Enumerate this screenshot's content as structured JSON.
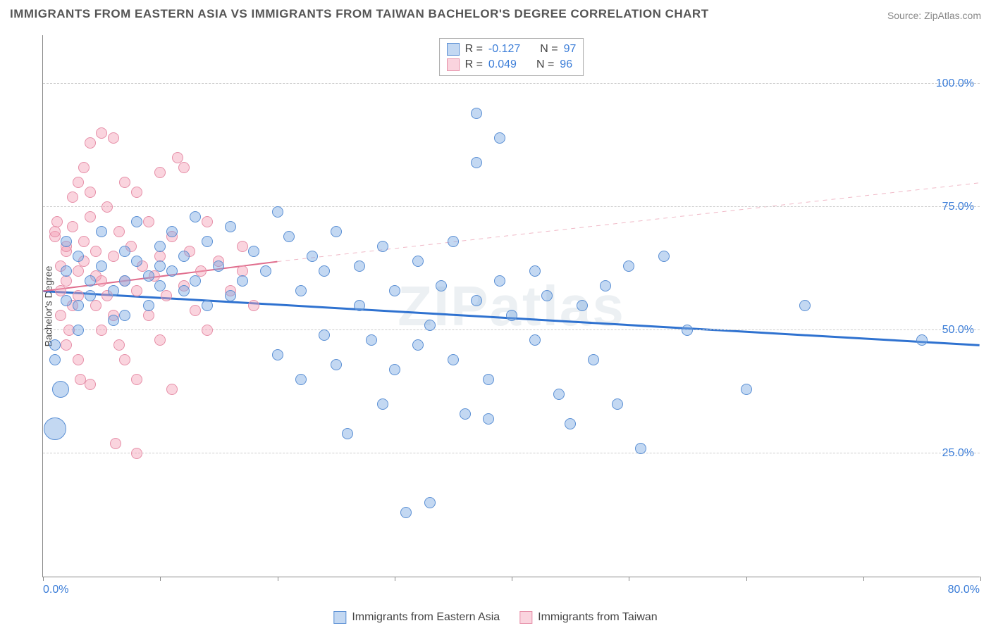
{
  "title": "IMMIGRANTS FROM EASTERN ASIA VS IMMIGRANTS FROM TAIWAN BACHELOR'S DEGREE CORRELATION CHART",
  "source_prefix": "Source: ",
  "source_name": "ZipAtlas.com",
  "watermark": "ZIPatlas",
  "chart": {
    "type": "scatter",
    "background_color": "#ffffff",
    "grid_color": "#cccccc",
    "axis_color": "#888888",
    "tick_label_color": "#3b7dd8",
    "text_color": "#444444",
    "xlim": [
      0,
      80
    ],
    "ylim": [
      0,
      110
    ],
    "xticks": [
      0,
      10,
      20,
      30,
      40,
      50,
      60,
      70,
      80
    ],
    "xtick_labels_shown": {
      "0": "0.0%",
      "80": "80.0%"
    },
    "yticks": [
      25,
      50,
      75,
      100
    ],
    "ytick_labels": {
      "25": "25.0%",
      "50": "50.0%",
      "75": "75.0%",
      "100": "100.0%"
    },
    "ylabel": "Bachelor's Degree",
    "marker_radius": 8,
    "marker_large_radius": 16,
    "series": {
      "blue": {
        "label": "Immigrants from Eastern Asia",
        "fill": "rgba(122,168,226,0.45)",
        "stroke": "#5a8fd4",
        "R": "-0.127",
        "N": "97",
        "trend": {
          "x1": 0,
          "y1": 58,
          "x2": 80,
          "y2": 47,
          "color": "#2f72d0",
          "width": 3,
          "dash_after_x": 80
        },
        "points": [
          [
            1,
            47
          ],
          [
            1,
            44
          ],
          [
            1,
            30,
            16
          ],
          [
            1.5,
            38,
            12
          ],
          [
            2,
            56
          ],
          [
            2,
            62
          ],
          [
            2,
            68
          ],
          [
            3,
            55
          ],
          [
            3,
            50
          ],
          [
            3,
            65
          ],
          [
            4,
            60
          ],
          [
            4,
            57
          ],
          [
            5,
            63
          ],
          [
            5,
            70
          ],
          [
            6,
            52
          ],
          [
            6,
            58
          ],
          [
            7,
            66
          ],
          [
            7,
            60
          ],
          [
            7,
            53
          ],
          [
            8,
            72
          ],
          [
            8,
            64
          ],
          [
            9,
            61
          ],
          [
            9,
            55
          ],
          [
            10,
            67
          ],
          [
            10,
            59
          ],
          [
            10,
            63
          ],
          [
            11,
            70
          ],
          [
            11,
            62
          ],
          [
            12,
            58
          ],
          [
            12,
            65
          ],
          [
            13,
            73
          ],
          [
            13,
            60
          ],
          [
            14,
            55
          ],
          [
            14,
            68
          ],
          [
            15,
            63
          ],
          [
            16,
            71
          ],
          [
            16,
            57
          ],
          [
            17,
            60
          ],
          [
            18,
            66
          ],
          [
            19,
            62
          ],
          [
            20,
            74
          ],
          [
            20,
            45
          ],
          [
            21,
            69
          ],
          [
            22,
            58
          ],
          [
            22,
            40
          ],
          [
            23,
            65
          ],
          [
            24,
            49
          ],
          [
            24,
            62
          ],
          [
            25,
            70
          ],
          [
            25,
            43
          ],
          [
            26,
            29
          ],
          [
            27,
            55
          ],
          [
            27,
            63
          ],
          [
            28,
            48
          ],
          [
            29,
            35
          ],
          [
            29,
            67
          ],
          [
            30,
            42
          ],
          [
            30,
            58
          ],
          [
            31,
            13
          ],
          [
            32,
            47
          ],
          [
            32,
            64
          ],
          [
            33,
            15
          ],
          [
            33,
            51
          ],
          [
            34,
            59
          ],
          [
            35,
            44
          ],
          [
            35,
            68
          ],
          [
            36,
            33
          ],
          [
            37,
            94
          ],
          [
            37,
            84
          ],
          [
            37,
            56
          ],
          [
            38,
            40
          ],
          [
            38,
            32
          ],
          [
            39,
            60
          ],
          [
            39,
            89
          ],
          [
            40,
            53
          ],
          [
            42,
            48
          ],
          [
            42,
            62
          ],
          [
            43,
            57
          ],
          [
            44,
            37
          ],
          [
            45,
            31
          ],
          [
            46,
            55
          ],
          [
            47,
            44
          ],
          [
            48,
            59
          ],
          [
            49,
            35
          ],
          [
            50,
            63
          ],
          [
            51,
            26
          ],
          [
            53,
            65
          ],
          [
            55,
            50
          ],
          [
            60,
            38
          ],
          [
            65,
            55
          ],
          [
            75,
            48
          ]
        ]
      },
      "pink": {
        "label": "Immigrants from Taiwan",
        "fill": "rgba(244,160,182,0.45)",
        "stroke": "#e68fa8",
        "R": "0.049",
        "N": "96",
        "trend": {
          "x1": 0,
          "y1": 58,
          "x2": 20,
          "y2": 64,
          "extend_to_x": 80,
          "extend_to_y": 80,
          "color_solid": "#e06d8d",
          "color_dash": "#f0b9c7",
          "width": 2
        },
        "points": [
          [
            1,
            69
          ],
          [
            1,
            70
          ],
          [
            1.2,
            72
          ],
          [
            1.5,
            63
          ],
          [
            1.5,
            58
          ],
          [
            1.5,
            53
          ],
          [
            2,
            66
          ],
          [
            2,
            60
          ],
          [
            2,
            67
          ],
          [
            2,
            47
          ],
          [
            2.2,
            50
          ],
          [
            2.5,
            77
          ],
          [
            2.5,
            71
          ],
          [
            2.5,
            55
          ],
          [
            3,
            57
          ],
          [
            3,
            62
          ],
          [
            3,
            80
          ],
          [
            3,
            44
          ],
          [
            3.2,
            40
          ],
          [
            3.5,
            68
          ],
          [
            3.5,
            64
          ],
          [
            3.5,
            83
          ],
          [
            4,
            78
          ],
          [
            4,
            88
          ],
          [
            4,
            73
          ],
          [
            4,
            39
          ],
          [
            4.5,
            61
          ],
          [
            4.5,
            66
          ],
          [
            4.5,
            55
          ],
          [
            5,
            90
          ],
          [
            5,
            60
          ],
          [
            5,
            50
          ],
          [
            5.5,
            57
          ],
          [
            5.5,
            75
          ],
          [
            6,
            89
          ],
          [
            6,
            65
          ],
          [
            6,
            53
          ],
          [
            6.2,
            27
          ],
          [
            6.5,
            70
          ],
          [
            6.5,
            47
          ],
          [
            7,
            80
          ],
          [
            7,
            60
          ],
          [
            7,
            44
          ],
          [
            7.5,
            67
          ],
          [
            8,
            78
          ],
          [
            8,
            58
          ],
          [
            8,
            40
          ],
          [
            8,
            25
          ],
          [
            8.5,
            63
          ],
          [
            9,
            72
          ],
          [
            9,
            53
          ],
          [
            9.5,
            61
          ],
          [
            10,
            82
          ],
          [
            10,
            65
          ],
          [
            10,
            48
          ],
          [
            10.5,
            57
          ],
          [
            11,
            38
          ],
          [
            11,
            69
          ],
          [
            11.5,
            85
          ],
          [
            12,
            83
          ],
          [
            12,
            59
          ],
          [
            12.5,
            66
          ],
          [
            13,
            54
          ],
          [
            13.5,
            62
          ],
          [
            14,
            72
          ],
          [
            14,
            50
          ],
          [
            15,
            64
          ],
          [
            16,
            58
          ],
          [
            17,
            67
          ],
          [
            17,
            62
          ],
          [
            18,
            55
          ]
        ]
      }
    },
    "legend_top": {
      "R_label": "R =",
      "N_label": "N ="
    }
  }
}
